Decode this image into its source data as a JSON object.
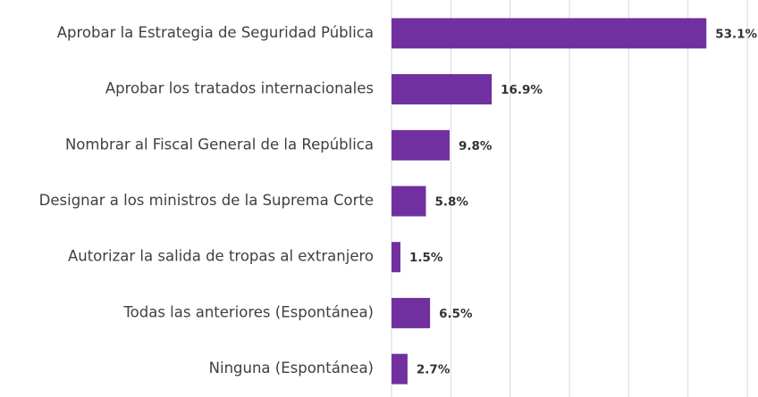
{
  "chart_data": {
    "type": "bar",
    "orientation": "horizontal",
    "categories": [
      "Aprobar la Estrategia de Seguridad Pública",
      "Aprobar los tratados internacionales",
      "Nombrar al Fiscal General de la República",
      "Designar a los ministros de la Suprema Corte",
      "Autorizar la salida de tropas al extranjero",
      "Todas las anteriores (Espontánea)",
      "Ninguna (Espontánea)"
    ],
    "values": [
      53.1,
      16.9,
      9.8,
      5.8,
      1.5,
      6.5,
      2.7
    ],
    "value_labels": [
      "53.1%",
      "16.9%",
      "9.8%",
      "5.8%",
      "1.5%",
      "6.5%",
      "2.7%"
    ],
    "color": "#7030a0",
    "xlim": [
      0,
      60
    ],
    "xticks": [
      0,
      10,
      20,
      30,
      40,
      50,
      60
    ],
    "grid": true
  }
}
